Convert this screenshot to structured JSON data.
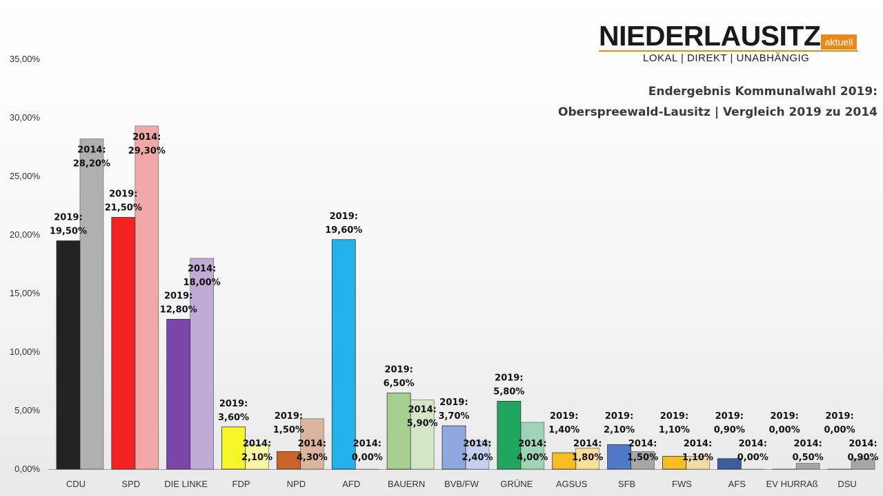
{
  "logo": {
    "name": "NIEDERLAUSITZ",
    "badge": "aktuell",
    "tagline": "LOKAL | DIREKT | UNABHÄNGIG"
  },
  "title": {
    "line1": "Endergebnis Kommunalwahl 2019:",
    "line2": "Oberspreewald-Lausitz | Vergleich 2019 zu 2014"
  },
  "chart_data": {
    "type": "bar",
    "title": "Endergebnis Kommunalwahl 2019: Oberspreewald-Lausitz | Vergleich 2019 zu 2014",
    "categories": [
      "CDU",
      "SPD",
      "DIE LINKE",
      "FDP",
      "NPD",
      "AFD",
      "BAUERN",
      "BVB/FW",
      "GRÜNE",
      "AGSUS",
      "SFB",
      "FWS",
      "AFS",
      "EV HURRAß",
      "DSU"
    ],
    "series": [
      {
        "label_prefix": "2019:",
        "values": [
          19.5,
          21.5,
          12.8,
          3.6,
          1.5,
          19.6,
          6.5,
          3.7,
          5.8,
          1.4,
          2.1,
          1.1,
          0.9,
          0.0,
          0.0
        ]
      },
      {
        "label_prefix": "2014:",
        "values": [
          28.2,
          29.3,
          18.0,
          2.1,
          4.3,
          0.0,
          5.9,
          2.4,
          4.0,
          1.8,
          1.5,
          1.1,
          0.0,
          0.5,
          0.9
        ]
      }
    ],
    "value_labels_2019": [
      "19,50%",
      "21,50%",
      "12,80%",
      "3,60%",
      "1,50%",
      "19,60%",
      "6,50%",
      "3,70%",
      "5,80%",
      "1,40%",
      "2,10%",
      "1,10%",
      "0,90%",
      "0,00%",
      "0,00%"
    ],
    "value_labels_2014": [
      "28,20%",
      "29,30%",
      "18,00%",
      "2,10%",
      "4,30%",
      "0,00%",
      "5,90%",
      "2,40%",
      "4,00%",
      "1,80%",
      "1,50%",
      "1,10%",
      "0,00%",
      "0,50%",
      "0,90%"
    ],
    "colors_2019": [
      "#222222",
      "#f52222",
      "#7a47a8",
      "#f5f52a",
      "#c8632a",
      "#22b2ec",
      "#a8cf8f",
      "#91a8de",
      "#1fa55e",
      "#f7bd22",
      "#4f79c7",
      "#f7bd22",
      "#3d5e9e",
      "#a0a0a0",
      "#a0a0a0"
    ],
    "colors_2014": [
      "#b0b0b0",
      "#f0a8a8",
      "#c0abd6",
      "#f7f7a6",
      "#dbb49d",
      "#a6dcf6",
      "#d3e6c6",
      "#c4d1ee",
      "#9ed4b5",
      "#f9de9a",
      "#a6a6a6",
      "#f2dba2",
      "#a6a6a6",
      "#a6a6a6",
      "#a6a6a6"
    ],
    "yticks": [
      "0,00%",
      "5,00%",
      "10,00%",
      "15,00%",
      "20,00%",
      "25,00%",
      "30,00%",
      "35,00%"
    ],
    "ylim": [
      0,
      35
    ],
    "grid": false,
    "legend": "none"
  }
}
